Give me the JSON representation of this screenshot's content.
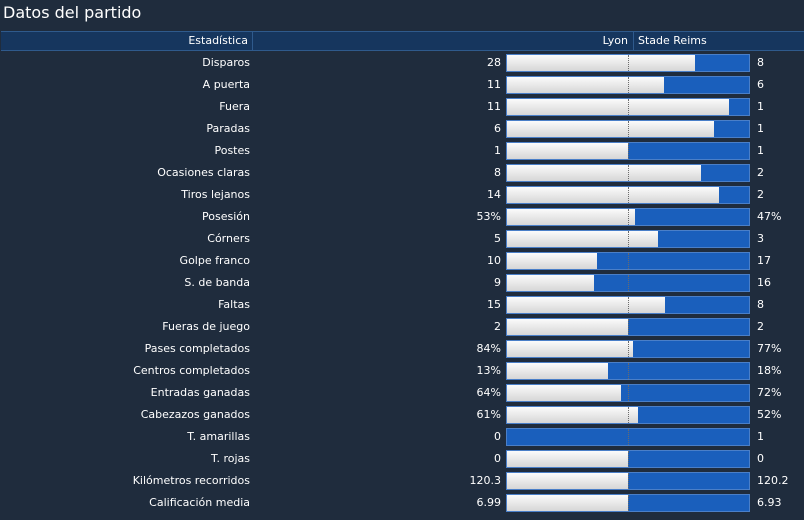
{
  "title": "Datos del partido",
  "header": {
    "stat_col": "Estadística",
    "home_team": "Lyon",
    "away_team": "Stade Reims"
  },
  "colors": {
    "home_bar": "#e6e6e6",
    "away_bar": "#1a5fbc",
    "background": "#1f2c3d",
    "header_bg": "#16365e"
  },
  "stats": [
    {
      "label": "Disparos",
      "home": "28",
      "away": "8",
      "home_share": 0.778
    },
    {
      "label": "A puerta",
      "home": "11",
      "away": "6",
      "home_share": 0.647
    },
    {
      "label": "Fuera",
      "home": "11",
      "away": "1",
      "home_share": 0.917
    },
    {
      "label": "Paradas",
      "home": "6",
      "away": "1",
      "home_share": 0.857
    },
    {
      "label": "Postes",
      "home": "1",
      "away": "1",
      "home_share": 0.5
    },
    {
      "label": "Ocasiones claras",
      "home": "8",
      "away": "2",
      "home_share": 0.8
    },
    {
      "label": "Tiros lejanos",
      "home": "14",
      "away": "2",
      "home_share": 0.875
    },
    {
      "label": "Posesión",
      "home": "53%",
      "away": "47%",
      "home_share": 0.53
    },
    {
      "label": "Córners",
      "home": "5",
      "away": "3",
      "home_share": 0.625
    },
    {
      "label": "Golpe franco",
      "home": "10",
      "away": "17",
      "home_share": 0.37
    },
    {
      "label": "S. de banda",
      "home": "9",
      "away": "16",
      "home_share": 0.36
    },
    {
      "label": "Faltas",
      "home": "15",
      "away": "8",
      "home_share": 0.652
    },
    {
      "label": "Fueras de juego",
      "home": "2",
      "away": "2",
      "home_share": 0.5
    },
    {
      "label": "Pases completados",
      "home": "84%",
      "away": "77%",
      "home_share": 0.522
    },
    {
      "label": "Centros completados",
      "home": "13%",
      "away": "18%",
      "home_share": 0.419
    },
    {
      "label": "Entradas ganadas",
      "home": "64%",
      "away": "72%",
      "home_share": 0.471
    },
    {
      "label": "Cabezazos ganados",
      "home": "61%",
      "away": "52%",
      "home_share": 0.54
    },
    {
      "label": "T. amarillas",
      "home": "0",
      "away": "1",
      "home_share": 0.0
    },
    {
      "label": "T. rojas",
      "home": "0",
      "away": "0",
      "home_share": 0.5
    },
    {
      "label": "Kilómetros recorridos",
      "home": "120.3",
      "away": "120.2",
      "home_share": 0.5
    },
    {
      "label": "Calificación media",
      "home": "6.99",
      "away": "6.93",
      "home_share": 0.5
    }
  ]
}
